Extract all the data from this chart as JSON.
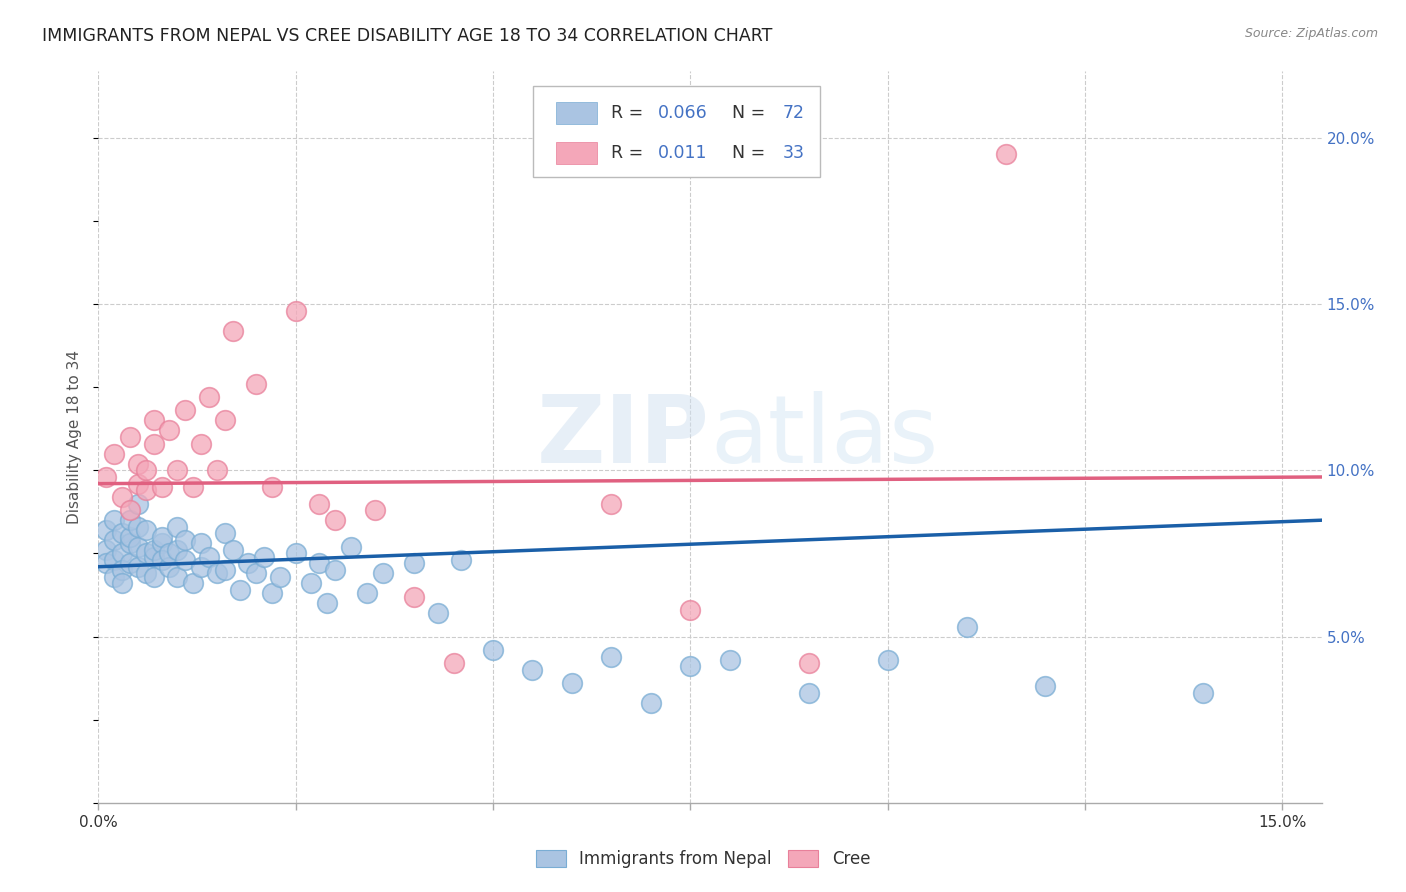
{
  "title": "IMMIGRANTS FROM NEPAL VS CREE DISABILITY AGE 18 TO 34 CORRELATION CHART",
  "source": "Source: ZipAtlas.com",
  "ylabel": "Disability Age 18 to 34",
  "xlim": [
    0.0,
    0.155
  ],
  "ylim": [
    0.0,
    0.22
  ],
  "xticks": [
    0.0,
    0.025,
    0.05,
    0.075,
    0.1,
    0.125,
    0.15
  ],
  "xtick_labels": [
    "0.0%",
    "",
    "",
    "",
    "",
    "",
    "15.0%"
  ],
  "yticks_right": [
    0.05,
    0.1,
    0.15,
    0.2
  ],
  "ytick_labels_right": [
    "5.0%",
    "10.0%",
    "15.0%",
    "20.0%"
  ],
  "nepal_color": "#aac4e2",
  "cree_color": "#f4a7b9",
  "nepal_edge_color": "#7aadd4",
  "cree_edge_color": "#e8809a",
  "nepal_line_color": "#1a5fa8",
  "cree_line_color": "#e06080",
  "nepal_R": 0.066,
  "nepal_N": 72,
  "cree_R": 0.011,
  "cree_N": 33,
  "watermark": "ZIPatlas",
  "legend_nepal": "Immigrants from Nepal",
  "legend_cree": "Cree",
  "nepal_x": [
    0.001,
    0.001,
    0.001,
    0.002,
    0.002,
    0.002,
    0.002,
    0.003,
    0.003,
    0.003,
    0.003,
    0.004,
    0.004,
    0.004,
    0.004,
    0.005,
    0.005,
    0.005,
    0.005,
    0.006,
    0.006,
    0.006,
    0.007,
    0.007,
    0.007,
    0.008,
    0.008,
    0.008,
    0.009,
    0.009,
    0.01,
    0.01,
    0.01,
    0.011,
    0.011,
    0.012,
    0.013,
    0.013,
    0.014,
    0.015,
    0.016,
    0.016,
    0.017,
    0.018,
    0.019,
    0.02,
    0.021,
    0.022,
    0.023,
    0.025,
    0.027,
    0.028,
    0.029,
    0.03,
    0.032,
    0.034,
    0.036,
    0.04,
    0.043,
    0.046,
    0.05,
    0.055,
    0.06,
    0.065,
    0.07,
    0.075,
    0.08,
    0.09,
    0.1,
    0.11,
    0.12,
    0.14
  ],
  "nepal_y": [
    0.082,
    0.076,
    0.072,
    0.085,
    0.079,
    0.073,
    0.068,
    0.081,
    0.075,
    0.07,
    0.066,
    0.078,
    0.072,
    0.08,
    0.085,
    0.077,
    0.071,
    0.083,
    0.09,
    0.075,
    0.069,
    0.082,
    0.074,
    0.068,
    0.076,
    0.078,
    0.073,
    0.08,
    0.071,
    0.075,
    0.083,
    0.076,
    0.068,
    0.073,
    0.079,
    0.066,
    0.071,
    0.078,
    0.074,
    0.069,
    0.081,
    0.07,
    0.076,
    0.064,
    0.072,
    0.069,
    0.074,
    0.063,
    0.068,
    0.075,
    0.066,
    0.072,
    0.06,
    0.07,
    0.077,
    0.063,
    0.069,
    0.072,
    0.057,
    0.073,
    0.046,
    0.04,
    0.036,
    0.044,
    0.03,
    0.041,
    0.043,
    0.033,
    0.043,
    0.053,
    0.035,
    0.033
  ],
  "cree_x": [
    0.001,
    0.002,
    0.003,
    0.004,
    0.004,
    0.005,
    0.005,
    0.006,
    0.006,
    0.007,
    0.007,
    0.008,
    0.009,
    0.01,
    0.011,
    0.012,
    0.013,
    0.014,
    0.015,
    0.016,
    0.017,
    0.02,
    0.022,
    0.025,
    0.028,
    0.03,
    0.035,
    0.04,
    0.045,
    0.065,
    0.075,
    0.09,
    0.115
  ],
  "cree_y": [
    0.098,
    0.105,
    0.092,
    0.11,
    0.088,
    0.102,
    0.096,
    0.1,
    0.094,
    0.108,
    0.115,
    0.095,
    0.112,
    0.1,
    0.118,
    0.095,
    0.108,
    0.122,
    0.1,
    0.115,
    0.142,
    0.126,
    0.095,
    0.148,
    0.09,
    0.085,
    0.088,
    0.062,
    0.042,
    0.09,
    0.058,
    0.042,
    0.195
  ],
  "background_color": "#ffffff",
  "grid_color": "#cccccc",
  "nepal_line_x0": 0.0,
  "nepal_line_x1": 0.155,
  "nepal_line_y0": 0.071,
  "nepal_line_y1": 0.085,
  "cree_line_x0": 0.0,
  "cree_line_x1": 0.155,
  "cree_line_y0": 0.096,
  "cree_line_y1": 0.098,
  "blue_color": "#4472c4",
  "title_fontsize": 12.5,
  "tick_fontsize": 11
}
